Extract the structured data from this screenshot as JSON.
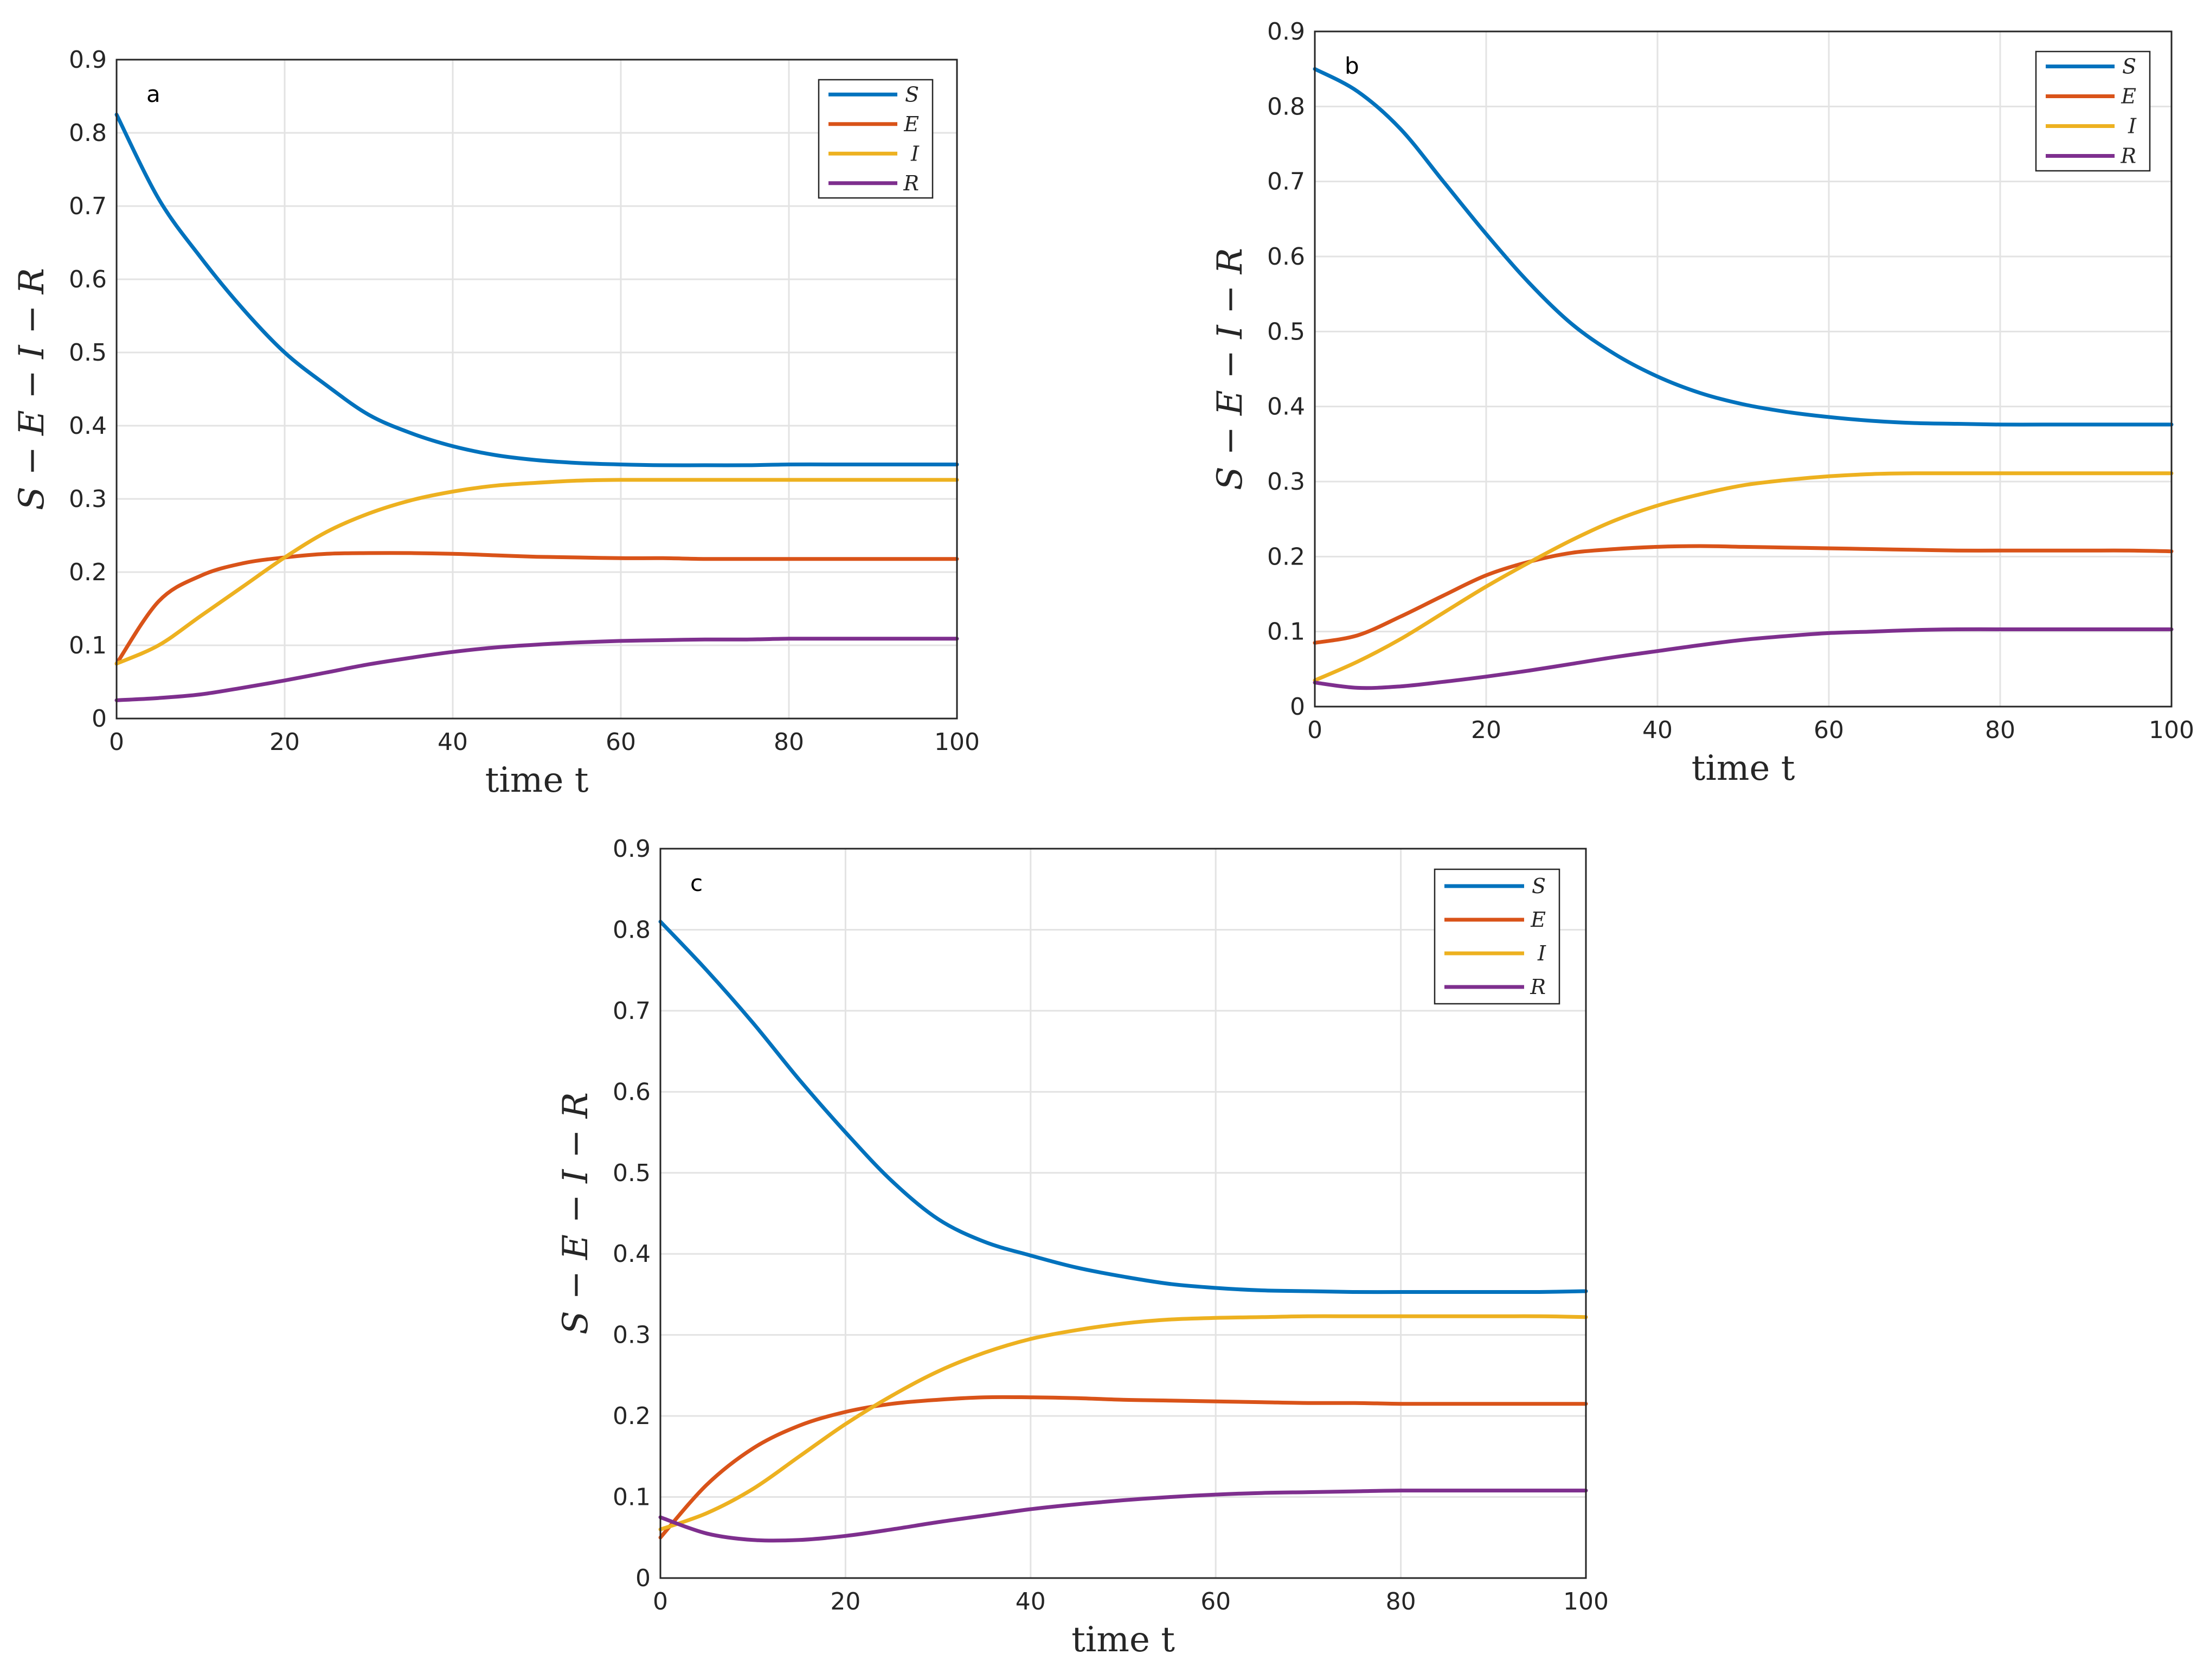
{
  "chart_data": [
    {
      "type": "line",
      "panel_label": "a",
      "xlabel": "time t",
      "ylabel": "S − E − I − R",
      "xlim": [
        0,
        100
      ],
      "ylim": [
        0,
        0.9
      ],
      "xticks": [
        "0",
        "20",
        "40",
        "60",
        "80",
        "100"
      ],
      "yticks": [
        "0",
        "0.1",
        "0.2",
        "0.3",
        "0.4",
        "0.5",
        "0.6",
        "0.7",
        "0.8",
        "0.9"
      ],
      "grid": true,
      "legend_position": "top-right",
      "x": [
        0,
        5,
        10,
        15,
        20,
        25,
        30,
        35,
        40,
        45,
        50,
        55,
        60,
        65,
        70,
        75,
        80,
        85,
        90,
        95,
        100
      ],
      "series": [
        {
          "name": "S",
          "color": "#0072BD",
          "values": [
            0.825,
            0.71,
            0.63,
            0.56,
            0.5,
            0.455,
            0.415,
            0.39,
            0.372,
            0.36,
            0.353,
            0.349,
            0.347,
            0.346,
            0.346,
            0.346,
            0.347,
            0.347,
            0.347,
            0.347,
            0.347
          ]
        },
        {
          "name": "E",
          "color": "#D95319",
          "values": [
            0.075,
            0.16,
            0.195,
            0.212,
            0.22,
            0.225,
            0.226,
            0.226,
            0.225,
            0.223,
            0.221,
            0.22,
            0.219,
            0.219,
            0.218,
            0.218,
            0.218,
            0.218,
            0.218,
            0.218,
            0.218
          ]
        },
        {
          "name": "I",
          "color": "#EDB120",
          "values": [
            0.075,
            0.1,
            0.14,
            0.18,
            0.22,
            0.255,
            0.28,
            0.298,
            0.31,
            0.318,
            0.322,
            0.325,
            0.326,
            0.326,
            0.326,
            0.326,
            0.326,
            0.326,
            0.326,
            0.326,
            0.326
          ]
        },
        {
          "name": "R",
          "color": "#7E2F8E",
          "values": [
            0.025,
            0.028,
            0.033,
            0.042,
            0.052,
            0.063,
            0.074,
            0.083,
            0.091,
            0.097,
            0.101,
            0.104,
            0.106,
            0.107,
            0.108,
            0.108,
            0.109,
            0.109,
            0.109,
            0.109,
            0.109
          ]
        }
      ]
    },
    {
      "type": "line",
      "panel_label": "b",
      "xlabel": "time t",
      "ylabel": "S − E − I − R",
      "xlim": [
        0,
        100
      ],
      "ylim": [
        0,
        0.9
      ],
      "xticks": [
        "0",
        "20",
        "40",
        "60",
        "80",
        "100"
      ],
      "yticks": [
        "0",
        "0.1",
        "0.2",
        "0.3",
        "0.4",
        "0.5",
        "0.6",
        "0.7",
        "0.8",
        "0.9"
      ],
      "grid": true,
      "legend_position": "top-right",
      "x": [
        0,
        5,
        10,
        15,
        20,
        25,
        30,
        35,
        40,
        45,
        50,
        55,
        60,
        65,
        70,
        75,
        80,
        85,
        90,
        95,
        100
      ],
      "series": [
        {
          "name": "S",
          "color": "#0072BD",
          "values": [
            0.85,
            0.82,
            0.77,
            0.7,
            0.63,
            0.565,
            0.51,
            0.47,
            0.44,
            0.418,
            0.403,
            0.393,
            0.386,
            0.381,
            0.378,
            0.377,
            0.376,
            0.376,
            0.376,
            0.376,
            0.376
          ]
        },
        {
          "name": "E",
          "color": "#D95319",
          "values": [
            0.085,
            0.095,
            0.12,
            0.148,
            0.175,
            0.193,
            0.205,
            0.21,
            0.213,
            0.214,
            0.213,
            0.212,
            0.211,
            0.21,
            0.209,
            0.208,
            0.208,
            0.208,
            0.208,
            0.208,
            0.207
          ]
        },
        {
          "name": "I",
          "color": "#EDB120",
          "values": [
            0.035,
            0.06,
            0.09,
            0.125,
            0.16,
            0.192,
            0.222,
            0.248,
            0.268,
            0.283,
            0.295,
            0.302,
            0.307,
            0.31,
            0.311,
            0.311,
            0.311,
            0.311,
            0.311,
            0.311,
            0.311
          ]
        },
        {
          "name": "R",
          "color": "#7E2F8E",
          "values": [
            0.032,
            0.025,
            0.027,
            0.033,
            0.04,
            0.048,
            0.057,
            0.066,
            0.074,
            0.082,
            0.089,
            0.094,
            0.098,
            0.1,
            0.102,
            0.103,
            0.103,
            0.103,
            0.103,
            0.103,
            0.103
          ]
        }
      ]
    },
    {
      "type": "line",
      "panel_label": "c",
      "xlabel": "time t",
      "ylabel": "S − E − I − R",
      "xlim": [
        0,
        100
      ],
      "ylim": [
        0,
        0.9
      ],
      "xticks": [
        "0",
        "20",
        "40",
        "60",
        "80",
        "100"
      ],
      "yticks": [
        "0",
        "0.1",
        "0.2",
        "0.3",
        "0.4",
        "0.5",
        "0.6",
        "0.7",
        "0.8",
        "0.9"
      ],
      "grid": true,
      "legend_position": "top-right",
      "x": [
        0,
        5,
        10,
        15,
        20,
        25,
        30,
        35,
        40,
        45,
        50,
        55,
        60,
        65,
        70,
        75,
        80,
        85,
        90,
        95,
        100
      ],
      "series": [
        {
          "name": "S",
          "color": "#0072BD",
          "values": [
            0.81,
            0.75,
            0.685,
            0.615,
            0.55,
            0.49,
            0.443,
            0.415,
            0.398,
            0.383,
            0.372,
            0.363,
            0.358,
            0.355,
            0.354,
            0.353,
            0.353,
            0.353,
            0.353,
            0.353,
            0.354
          ]
        },
        {
          "name": "E",
          "color": "#D95319",
          "values": [
            0.05,
            0.115,
            0.16,
            0.188,
            0.205,
            0.215,
            0.22,
            0.223,
            0.223,
            0.222,
            0.22,
            0.219,
            0.218,
            0.217,
            0.216,
            0.216,
            0.215,
            0.215,
            0.215,
            0.215,
            0.215
          ]
        },
        {
          "name": "I",
          "color": "#EDB120",
          "values": [
            0.06,
            0.08,
            0.11,
            0.15,
            0.19,
            0.225,
            0.255,
            0.278,
            0.295,
            0.306,
            0.314,
            0.319,
            0.321,
            0.322,
            0.323,
            0.323,
            0.323,
            0.323,
            0.323,
            0.323,
            0.322
          ]
        },
        {
          "name": "R",
          "color": "#7E2F8E",
          "values": [
            0.075,
            0.055,
            0.047,
            0.047,
            0.052,
            0.06,
            0.069,
            0.077,
            0.085,
            0.091,
            0.096,
            0.1,
            0.103,
            0.105,
            0.106,
            0.107,
            0.108,
            0.108,
            0.108,
            0.108,
            0.108
          ]
        }
      ]
    }
  ]
}
